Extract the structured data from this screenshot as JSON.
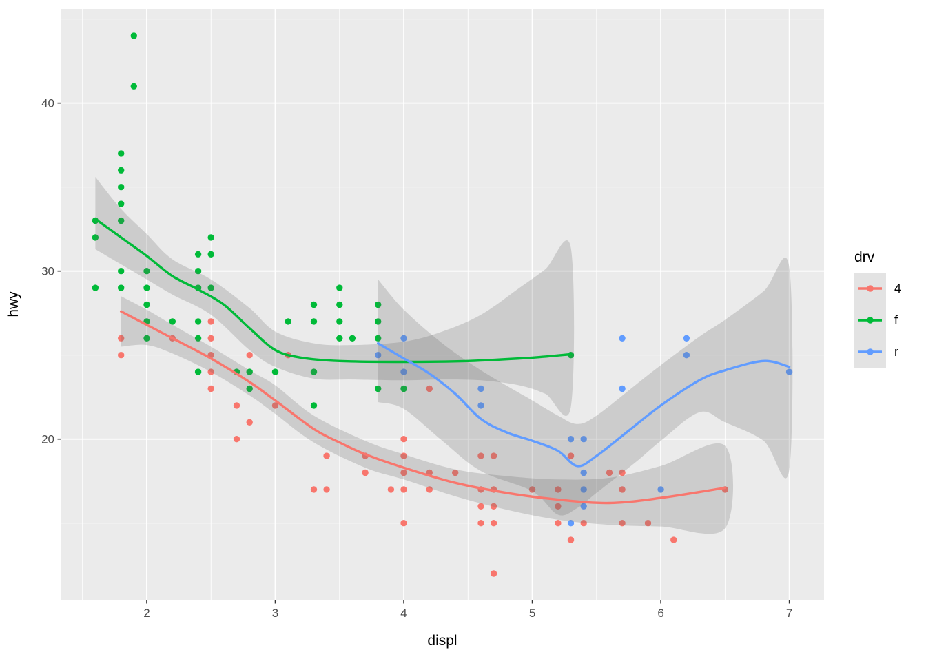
{
  "chart_data": {
    "type": "scatter",
    "title": "",
    "xlabel": "displ",
    "ylabel": "hwy",
    "x_domain": [
      1.33,
      7.27
    ],
    "y_domain": [
      10.4,
      45.6
    ],
    "x_ticks": [
      2,
      3,
      4,
      5,
      6,
      7
    ],
    "x_minor_ticks": [
      1.5,
      2.5,
      3.5,
      4.5,
      5.5,
      6.5
    ],
    "y_ticks": [
      20,
      30,
      40
    ],
    "y_minor_ticks": [
      15,
      25,
      35,
      45
    ],
    "grid": true,
    "panel_background": "#EBEBEB",
    "grid_color": "#FFFFFF",
    "tick_color": "#333333",
    "tick_label_color": "#4D4D4D",
    "ribbon_color": "#696969",
    "ribbon_opacity": 0.23,
    "legend": {
      "title": "drv",
      "position": "right",
      "key_fill": "#E3E3E3",
      "entries": [
        {
          "label": "4"
        },
        {
          "label": "f"
        },
        {
          "label": "r"
        }
      ]
    },
    "series": [
      {
        "name": "4",
        "color": "#F8766D",
        "points": [
          [
            1.8,
            26
          ],
          [
            1.8,
            25
          ],
          [
            2.2,
            26
          ],
          [
            2.5,
            27
          ],
          [
            2.5,
            26
          ],
          [
            2.5,
            25
          ],
          [
            2.5,
            24
          ],
          [
            2.5,
            23
          ],
          [
            2.7,
            22
          ],
          [
            2.7,
            20
          ],
          [
            2.8,
            25
          ],
          [
            2.8,
            21
          ],
          [
            3.0,
            22
          ],
          [
            3.1,
            25
          ],
          [
            3.3,
            17
          ],
          [
            3.4,
            19
          ],
          [
            3.4,
            17
          ],
          [
            3.7,
            19
          ],
          [
            3.7,
            18
          ],
          [
            3.9,
            17
          ],
          [
            4.0,
            20
          ],
          [
            4.0,
            19
          ],
          [
            4.0,
            18
          ],
          [
            4.0,
            17
          ],
          [
            4.0,
            15
          ],
          [
            4.2,
            23
          ],
          [
            4.2,
            18
          ],
          [
            4.2,
            17
          ],
          [
            4.4,
            18
          ],
          [
            4.6,
            19
          ],
          [
            4.6,
            17
          ],
          [
            4.6,
            16
          ],
          [
            4.6,
            15
          ],
          [
            4.7,
            19
          ],
          [
            4.7,
            17
          ],
          [
            4.7,
            16
          ],
          [
            4.7,
            15
          ],
          [
            4.7,
            12
          ],
          [
            5.0,
            17
          ],
          [
            5.2,
            17
          ],
          [
            5.2,
            16
          ],
          [
            5.2,
            15
          ],
          [
            5.3,
            19
          ],
          [
            5.3,
            14
          ],
          [
            5.4,
            15
          ],
          [
            5.6,
            18
          ],
          [
            5.7,
            18
          ],
          [
            5.7,
            17
          ],
          [
            5.7,
            15
          ],
          [
            5.9,
            15
          ],
          [
            6.1,
            14
          ],
          [
            6.5,
            17
          ]
        ],
        "smooth_line": [
          [
            1.8,
            27.6
          ],
          [
            2.0,
            26.8
          ],
          [
            2.2,
            26.0
          ],
          [
            2.5,
            24.8
          ],
          [
            2.8,
            23.4
          ],
          [
            3.0,
            22.3
          ],
          [
            3.3,
            20.6
          ],
          [
            3.5,
            19.8
          ],
          [
            3.7,
            19.1
          ],
          [
            4.0,
            18.3
          ],
          [
            4.4,
            17.4
          ],
          [
            4.8,
            16.8
          ],
          [
            5.2,
            16.4
          ],
          [
            5.6,
            16.2
          ],
          [
            6.0,
            16.5
          ],
          [
            6.5,
            17.1
          ]
        ],
        "ribbon_upper": [
          [
            1.8,
            28.5
          ],
          [
            2.0,
            27.7
          ],
          [
            2.2,
            26.8
          ],
          [
            2.5,
            25.5
          ],
          [
            2.8,
            24.1
          ],
          [
            3.0,
            23.2
          ],
          [
            3.3,
            21.4
          ],
          [
            3.7,
            19.9
          ],
          [
            4.0,
            19.1
          ],
          [
            4.4,
            18.2
          ],
          [
            4.8,
            17.8
          ],
          [
            5.2,
            17.6
          ],
          [
            5.6,
            17.7
          ],
          [
            6.0,
            18.4
          ],
          [
            6.5,
            19.6
          ]
        ],
        "ribbon_lower": [
          [
            1.8,
            25.5
          ],
          [
            2.0,
            25.6
          ],
          [
            2.2,
            25.1
          ],
          [
            2.5,
            24.0
          ],
          [
            2.8,
            22.6
          ],
          [
            3.0,
            21.5
          ],
          [
            3.3,
            19.8
          ],
          [
            3.7,
            18.3
          ],
          [
            4.0,
            17.6
          ],
          [
            4.4,
            16.6
          ],
          [
            4.8,
            15.8
          ],
          [
            5.2,
            15.2
          ],
          [
            5.6,
            14.9
          ],
          [
            6.0,
            14.8
          ],
          [
            6.5,
            14.7
          ]
        ]
      },
      {
        "name": "f",
        "color": "#00BA38",
        "points": [
          [
            1.6,
            33
          ],
          [
            1.6,
            32
          ],
          [
            1.6,
            29
          ],
          [
            1.8,
            37
          ],
          [
            1.8,
            36
          ],
          [
            1.8,
            35
          ],
          [
            1.8,
            34
          ],
          [
            1.8,
            33
          ],
          [
            1.8,
            30
          ],
          [
            1.8,
            29
          ],
          [
            1.9,
            44
          ],
          [
            1.9,
            41
          ],
          [
            2.0,
            30
          ],
          [
            2.0,
            29
          ],
          [
            2.0,
            28
          ],
          [
            2.0,
            27
          ],
          [
            2.0,
            26
          ],
          [
            2.2,
            27
          ],
          [
            2.4,
            31
          ],
          [
            2.4,
            30
          ],
          [
            2.4,
            29
          ],
          [
            2.4,
            27
          ],
          [
            2.4,
            26
          ],
          [
            2.4,
            24
          ],
          [
            2.5,
            32
          ],
          [
            2.5,
            31
          ],
          [
            2.5,
            29
          ],
          [
            2.7,
            24
          ],
          [
            2.8,
            24
          ],
          [
            2.8,
            23
          ],
          [
            3.0,
            24
          ],
          [
            3.1,
            27
          ],
          [
            3.3,
            28
          ],
          [
            3.3,
            27
          ],
          [
            3.3,
            24
          ],
          [
            3.3,
            22
          ],
          [
            3.5,
            29
          ],
          [
            3.5,
            28
          ],
          [
            3.5,
            27
          ],
          [
            3.5,
            26
          ],
          [
            3.6,
            26
          ],
          [
            3.8,
            28
          ],
          [
            3.8,
            27
          ],
          [
            3.8,
            26
          ],
          [
            3.8,
            23
          ],
          [
            4.0,
            23
          ],
          [
            5.3,
            25
          ]
        ],
        "smooth_line": [
          [
            1.6,
            33.1
          ],
          [
            1.8,
            32.0
          ],
          [
            2.0,
            30.9
          ],
          [
            2.2,
            29.7
          ],
          [
            2.4,
            28.9
          ],
          [
            2.6,
            28.0
          ],
          [
            2.8,
            26.6
          ],
          [
            3.0,
            25.3
          ],
          [
            3.2,
            24.85
          ],
          [
            3.5,
            24.65
          ],
          [
            4.0,
            24.6
          ],
          [
            4.5,
            24.65
          ],
          [
            5.0,
            24.85
          ],
          [
            5.3,
            25.05
          ]
        ],
        "ribbon_upper": [
          [
            1.6,
            35.6
          ],
          [
            1.8,
            33.7
          ],
          [
            2.0,
            32.2
          ],
          [
            2.2,
            30.7
          ],
          [
            2.5,
            29.5
          ],
          [
            2.8,
            27.8
          ],
          [
            3.0,
            26.4
          ],
          [
            3.3,
            25.7
          ],
          [
            3.6,
            25.6
          ],
          [
            4.0,
            25.8
          ],
          [
            4.3,
            26.4
          ],
          [
            4.6,
            27.4
          ],
          [
            4.9,
            29.0
          ],
          [
            5.1,
            30.1
          ],
          [
            5.3,
            31.4
          ]
        ],
        "ribbon_lower": [
          [
            1.6,
            31.3
          ],
          [
            1.8,
            30.4
          ],
          [
            2.0,
            29.5
          ],
          [
            2.2,
            28.6
          ],
          [
            2.5,
            27.4
          ],
          [
            2.8,
            25.3
          ],
          [
            3.0,
            24.3
          ],
          [
            3.3,
            23.6
          ],
          [
            3.6,
            23.55
          ],
          [
            4.0,
            23.5
          ],
          [
            4.3,
            23.55
          ],
          [
            4.6,
            23.5
          ],
          [
            4.9,
            23.2
          ],
          [
            5.1,
            22.7
          ],
          [
            5.3,
            21.9
          ]
        ]
      },
      {
        "name": "r",
        "color": "#619CFF",
        "points": [
          [
            3.8,
            25
          ],
          [
            4.0,
            26
          ],
          [
            4.0,
            24
          ],
          [
            4.6,
            23
          ],
          [
            4.6,
            22
          ],
          [
            5.3,
            20
          ],
          [
            5.3,
            15
          ],
          [
            5.4,
            20
          ],
          [
            5.4,
            18
          ],
          [
            5.4,
            17
          ],
          [
            5.4,
            16
          ],
          [
            5.7,
            26
          ],
          [
            5.7,
            23
          ],
          [
            6.0,
            17
          ],
          [
            6.2,
            26
          ],
          [
            6.2,
            25
          ],
          [
            7.0,
            24
          ]
        ],
        "smooth_line": [
          [
            3.8,
            25.7
          ],
          [
            4.0,
            24.8
          ],
          [
            4.2,
            23.9
          ],
          [
            4.4,
            22.7
          ],
          [
            4.6,
            21.2
          ],
          [
            4.8,
            20.4
          ],
          [
            5.0,
            19.9
          ],
          [
            5.2,
            19.3
          ],
          [
            5.35,
            18.4
          ],
          [
            5.5,
            19.0
          ],
          [
            5.75,
            20.5
          ],
          [
            6.0,
            22.0
          ],
          [
            6.3,
            23.5
          ],
          [
            6.5,
            24.1
          ],
          [
            6.8,
            24.65
          ],
          [
            7.0,
            24.3
          ]
        ],
        "ribbon_upper": [
          [
            3.8,
            29.5
          ],
          [
            4.0,
            27.7
          ],
          [
            4.3,
            25.7
          ],
          [
            4.6,
            24.1
          ],
          [
            5.0,
            22.3
          ],
          [
            5.2,
            21.4
          ],
          [
            5.35,
            20.9
          ],
          [
            5.5,
            21.4
          ],
          [
            5.8,
            23.2
          ],
          [
            6.0,
            24.4
          ],
          [
            6.3,
            26.1
          ],
          [
            6.5,
            27.1
          ],
          [
            6.8,
            28.8
          ],
          [
            7.0,
            30.2
          ]
        ],
        "ribbon_lower": [
          [
            3.8,
            22.2
          ],
          [
            4.0,
            21.8
          ],
          [
            4.3,
            19.9
          ],
          [
            4.6,
            18.1
          ],
          [
            5.0,
            16.9
          ],
          [
            5.2,
            15.5
          ],
          [
            5.35,
            15.9
          ],
          [
            5.5,
            16.8
          ],
          [
            5.8,
            18.6
          ],
          [
            6.0,
            19.9
          ],
          [
            6.3,
            21.6
          ],
          [
            6.5,
            21.0
          ],
          [
            6.8,
            19.9
          ],
          [
            7.0,
            18.2
          ]
        ]
      }
    ]
  }
}
